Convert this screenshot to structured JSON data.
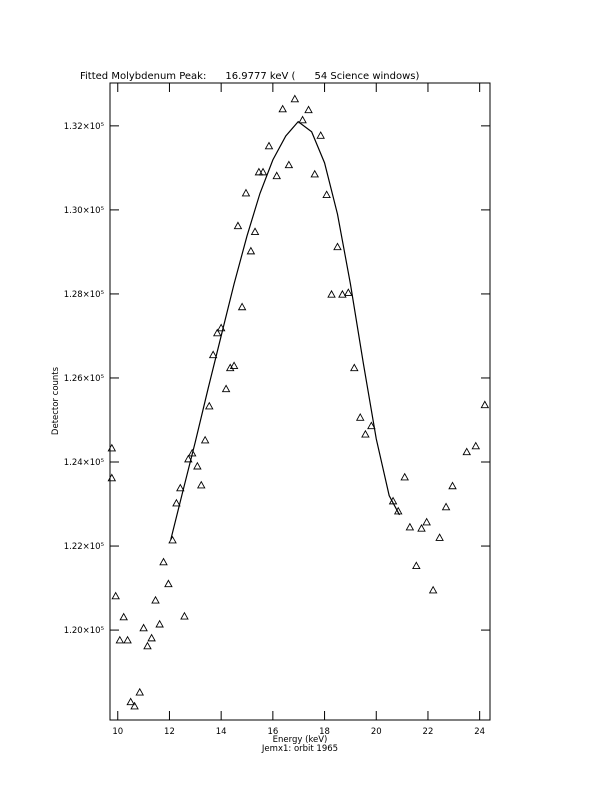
{
  "chart_data": {
    "type": "scatter",
    "title": "Fitted Molybdenum Peak:      16.9777 keV (      54 Science windows)",
    "x_label": "Energy (keV)",
    "y_label": "Detector counts",
    "subtitle": "Jemx1: orbit 1965",
    "xlim": [
      9.7,
      24.4
    ],
    "xticks": [
      10,
      12,
      14,
      16,
      18,
      20,
      22,
      24
    ],
    "ylim": [
      117860,
      133020
    ],
    "yticks": [
      {
        "value": 120000,
        "label": "1.20×10⁵"
      },
      {
        "value": 122000,
        "label": "1.22×10⁵"
      },
      {
        "value": 124000,
        "label": "1.24×10⁵"
      },
      {
        "value": 126000,
        "label": "1.26×10⁵"
      },
      {
        "value": 128000,
        "label": "1.28×10⁵"
      },
      {
        "value": 130000,
        "label": "1.30×10⁵"
      },
      {
        "value": 132000,
        "label": "1.32×10⁵"
      }
    ],
    "series": [
      {
        "style": "triangle",
        "color": "#000000",
        "x": [
          9.77,
          9.77,
          9.92,
          10.08,
          10.23,
          10.38,
          10.5,
          10.65,
          10.85,
          11.0,
          11.15,
          11.31,
          11.46,
          11.62,
          11.77,
          11.96,
          12.12,
          12.27,
          12.42,
          12.58,
          12.73,
          12.88,
          13.08,
          13.23,
          13.38,
          13.54,
          13.69,
          13.85,
          14.0,
          14.19,
          14.35,
          14.5,
          14.65,
          14.81,
          14.96,
          15.15,
          15.31,
          15.46,
          15.62,
          15.85,
          16.15,
          16.38,
          16.62,
          16.85,
          17.15,
          17.38,
          17.62,
          17.85,
          18.08,
          18.27,
          18.5,
          18.69,
          18.92,
          19.15,
          19.38,
          19.58,
          19.81,
          20.65,
          20.85,
          21.1,
          21.3,
          21.55,
          21.75,
          21.95,
          22.2,
          22.45,
          22.7,
          22.95,
          23.5,
          23.85,
          24.2
        ],
        "values": [
          124330,
          123620,
          120810,
          119760,
          120310,
          119760,
          118290,
          118190,
          118520,
          120050,
          119620,
          119810,
          120710,
          120140,
          121620,
          121100,
          122140,
          123020,
          123380,
          120330,
          124070,
          124210,
          123900,
          123450,
          124520,
          125330,
          126550,
          127070,
          127190,
          125740,
          126240,
          126290,
          129620,
          127690,
          130400,
          129020,
          129480,
          130900,
          130900,
          131520,
          130810,
          132400,
          131070,
          132640,
          132140,
          132380,
          130850,
          131770,
          130360,
          127990,
          129120,
          127990,
          128030,
          126240,
          125060,
          124660,
          124860,
          123070,
          122830,
          123640,
          122450,
          121530,
          122420,
          122570,
          120950,
          122200,
          122930,
          123430,
          124240,
          124380,
          125360
        ]
      },
      {
        "style": "line",
        "color": "#000000",
        "x": [
          12.05,
          12.5,
          13,
          13.5,
          14,
          14.5,
          15,
          15.5,
          16,
          16.5,
          16.98,
          17.5,
          18,
          18.5,
          19,
          19.5,
          20,
          20.5,
          20.9
        ],
        "values": [
          122150,
          123260,
          124480,
          125760,
          127000,
          128240,
          129380,
          130390,
          131190,
          131760,
          132100,
          131860,
          131120,
          129900,
          128240,
          126350,
          124550,
          123200,
          122740
        ]
      }
    ]
  }
}
